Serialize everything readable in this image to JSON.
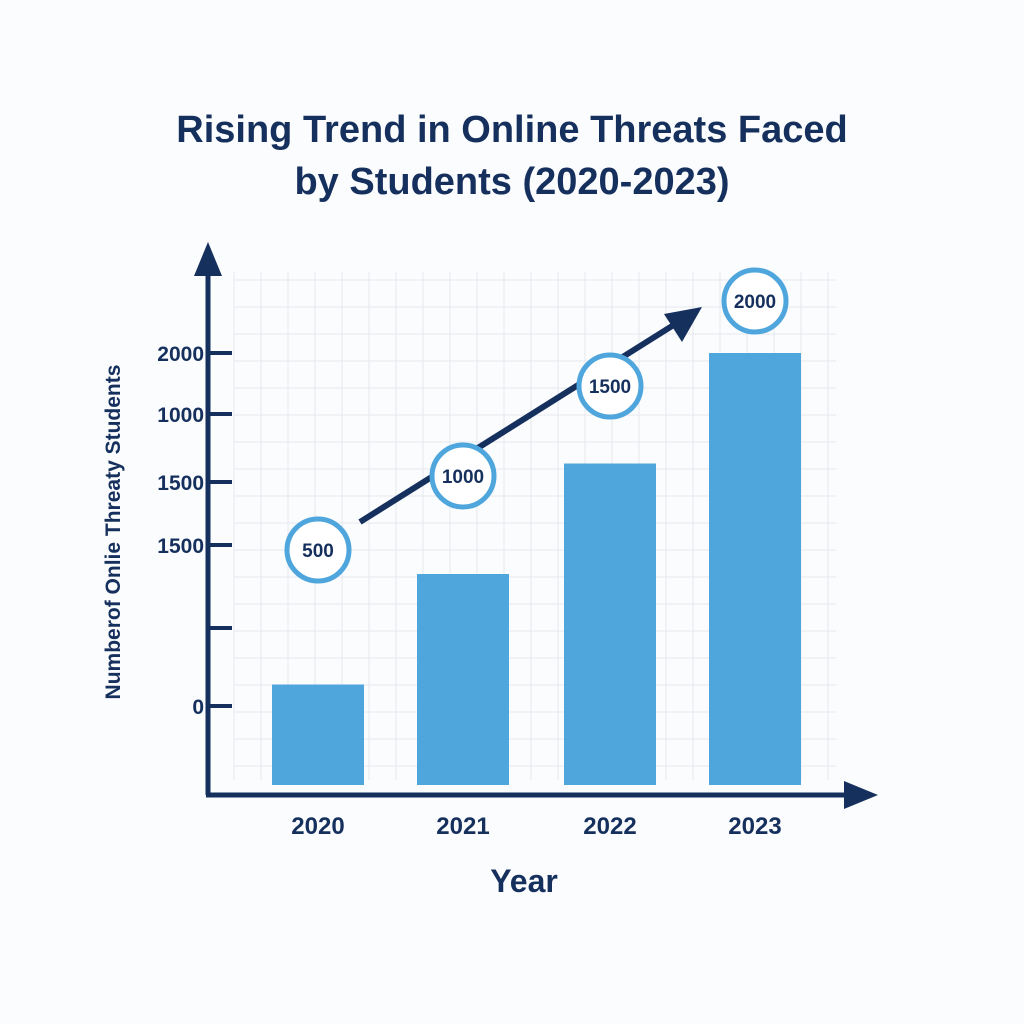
{
  "chart_data": {
    "type": "bar",
    "title_lines": [
      "Rising Trend in Online Threats Faced",
      "by Students (2020-2023)"
    ],
    "xlabel": "Year",
    "ylabel": "Numberof Onlie Threaty Students",
    "categories": [
      "2020",
      "2021",
      "2022",
      "2023"
    ],
    "values": [
      500,
      1000,
      1500,
      2000
    ],
    "data_labels": [
      "500",
      "1000",
      "1500",
      "2000"
    ],
    "y_tick_labels": [
      "0",
      "",
      "1500",
      "1500",
      "1000",
      "2000"
    ],
    "grid": true,
    "trend_arrow": true,
    "colors": {
      "bar": "#4fa6dd",
      "axis": "#16305e",
      "text": "#16305e",
      "grid": "#e4e9f0",
      "label_ring": "#4fa6dd",
      "label_fill": "#ffffff"
    }
  }
}
